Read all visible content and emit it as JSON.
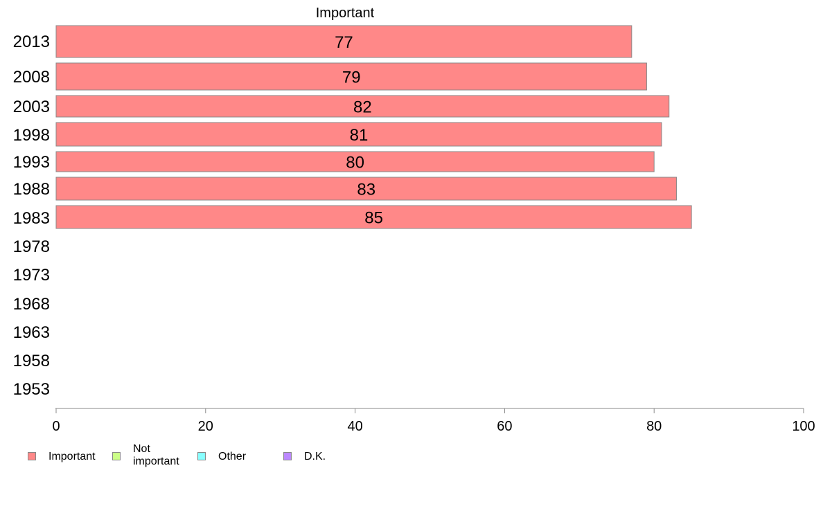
{
  "chart_data": {
    "type": "bar",
    "orientation": "horizontal",
    "title": "Important",
    "xlabel": "",
    "ylabel": "",
    "xlim": [
      0,
      100
    ],
    "x_ticks": [
      0,
      20,
      40,
      60,
      80,
      100
    ],
    "categories": [
      "2013",
      "2008",
      "2003",
      "1998",
      "1993",
      "1988",
      "1983",
      "1978",
      "1973",
      "1968",
      "1963",
      "1958",
      "1953"
    ],
    "series": [
      {
        "name": "Important",
        "color": "#ff8888",
        "values": [
          77,
          79,
          82,
          81,
          80,
          83,
          85,
          null,
          null,
          null,
          null,
          null,
          null
        ],
        "labels": [
          "77",
          "79",
          "82",
          "81",
          "80",
          "83",
          "85",
          null,
          null,
          null,
          null,
          null,
          null
        ]
      }
    ],
    "grid": false,
    "legend_position": "bottom-left"
  },
  "legend": {
    "items": [
      {
        "label": "Important",
        "color": "#ff8888"
      },
      {
        "label": "Not important",
        "color": "#ccff88"
      },
      {
        "label": "Other",
        "color": "#88ffff"
      },
      {
        "label": "D.K.",
        "color": "#bb88ff"
      }
    ]
  }
}
